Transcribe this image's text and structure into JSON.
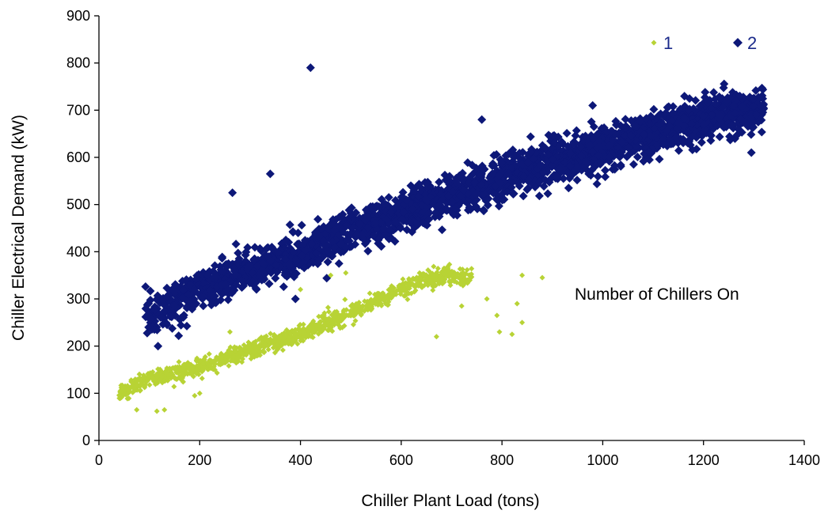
{
  "chart_data": {
    "type": "scatter",
    "title": "",
    "xlabel": "Chiller Plant Load (tons)",
    "ylabel": "Chiller Electrical Demand (kW)",
    "xlim": [
      0,
      1400
    ],
    "ylim": [
      0,
      900
    ],
    "xticks": [
      0,
      200,
      400,
      600,
      800,
      1000,
      1200,
      1400
    ],
    "yticks": [
      0,
      100,
      200,
      300,
      400,
      500,
      600,
      700,
      800,
      900
    ],
    "grid": false,
    "legend_title": "Number of Chillers On",
    "legend_position": "top-right",
    "series": [
      {
        "name": "1",
        "color": "#b8d335",
        "marker": "diamond-small",
        "trend": [
          [
            40,
            100
          ],
          [
            100,
            130
          ],
          [
            200,
            155
          ],
          [
            300,
            190
          ],
          [
            400,
            225
          ],
          [
            500,
            270
          ],
          [
            600,
            320
          ],
          [
            650,
            345
          ],
          [
            700,
            350
          ],
          [
            740,
            345
          ]
        ],
        "outliers": [
          [
            75,
            65
          ],
          [
            115,
            62
          ],
          [
            130,
            65
          ],
          [
            190,
            95
          ],
          [
            200,
            100
          ],
          [
            230,
            150
          ],
          [
            260,
            230
          ],
          [
            490,
            355
          ],
          [
            670,
            220
          ],
          [
            720,
            285
          ],
          [
            770,
            300
          ],
          [
            790,
            265
          ],
          [
            795,
            230
          ],
          [
            820,
            225
          ],
          [
            830,
            290
          ],
          [
            840,
            250
          ],
          [
            840,
            350
          ],
          [
            880,
            345
          ],
          [
            460,
            350
          ],
          [
            400,
            320
          ]
        ]
      },
      {
        "name": "2",
        "color": "#0d1878",
        "marker": "diamond",
        "trend": [
          [
            90,
            265
          ],
          [
            150,
            290
          ],
          [
            200,
            320
          ],
          [
            300,
            360
          ],
          [
            400,
            395
          ],
          [
            500,
            440
          ],
          [
            600,
            480
          ],
          [
            700,
            520
          ],
          [
            800,
            555
          ],
          [
            900,
            590
          ],
          [
            1000,
            620
          ],
          [
            1100,
            650
          ],
          [
            1200,
            680
          ],
          [
            1250,
            695
          ],
          [
            1320,
            700
          ]
        ],
        "outliers": [
          [
            420,
            790
          ],
          [
            265,
            525
          ],
          [
            340,
            565
          ],
          [
            1295,
            610
          ],
          [
            390,
            300
          ],
          [
            110,
            235
          ],
          [
            760,
            680
          ],
          [
            980,
            710
          ],
          [
            1260,
            710
          ]
        ]
      }
    ]
  }
}
